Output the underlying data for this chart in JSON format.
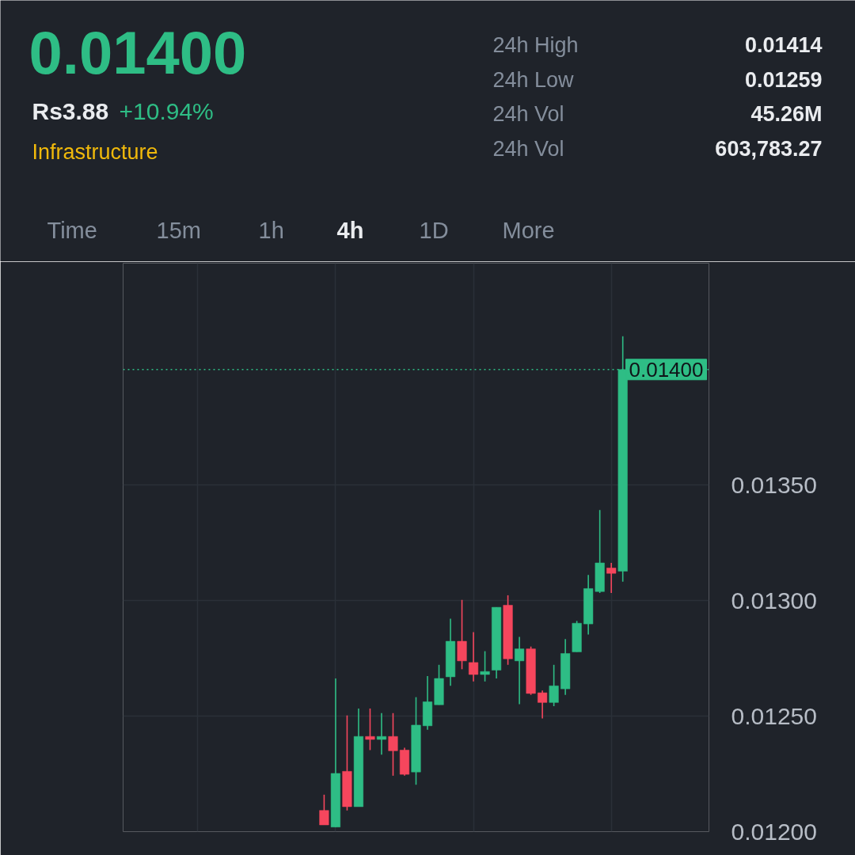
{
  "chart_data": {
    "type": "candlestick",
    "title": "0.01400",
    "annotations": [
      "Rs3.88",
      "+10.94%",
      "Infrastructure",
      "24h High",
      "0.01414",
      "24h Low",
      "0.01259",
      "24h Vol",
      "45.26M",
      "24h Vol",
      "603,783.27",
      "Time",
      "15m",
      "1h",
      "4h",
      "1D",
      "More"
    ],
    "categories": [
      null,
      null,
      null,
      null,
      null,
      null,
      null,
      null,
      null,
      null,
      null,
      null,
      null,
      null,
      null,
      null,
      null,
      null,
      null,
      null,
      null,
      null,
      null,
      null,
      null,
      null,
      null,
      null,
      null,
      null,
      null,
      null,
      null,
      null,
      null,
      null,
      null,
      null,
      null,
      null,
      null,
      null,
      null,
      null,
      null,
      null,
      null,
      null,
      null,
      null,
      null
    ],
    "ohlc": [
      null,
      null,
      null,
      null,
      null,
      null,
      null,
      null,
      null,
      null,
      null,
      null,
      null,
      null,
      null,
      null,
      null,
      [
        0.012092,
        0.01216,
        0.012029,
        0.012029
      ],
      [
        0.01202,
        0.012663,
        0.01202,
        0.012252
      ],
      [
        0.012261,
        0.012503,
        0.012092,
        0.012108
      ],
      [
        0.012108,
        0.012533,
        0.012108,
        0.012412
      ],
      [
        0.012412,
        0.012533,
        0.012353,
        0.012399
      ],
      [
        0.012399,
        0.012513,
        0.012333,
        0.012412
      ],
      [
        0.012412,
        0.012513,
        0.012242,
        0.01235
      ],
      [
        0.012353,
        0.012363,
        0.012242,
        0.012248
      ],
      [
        0.012258,
        0.012582,
        0.012203,
        0.012461
      ],
      [
        0.012458,
        0.012673,
        0.012441,
        0.012562
      ],
      [
        0.012549,
        0.012722,
        0.012549,
        0.012663
      ],
      [
        0.01267,
        0.012922,
        0.012631,
        0.012824
      ],
      [
        0.012824,
        0.013003,
        0.012703,
        0.012739
      ],
      [
        0.012732,
        0.012863,
        0.01265,
        0.01268
      ],
      [
        0.01268,
        0.012781,
        0.01265,
        0.012693
      ],
      [
        0.012699,
        0.012971,
        0.012663,
        0.012971
      ],
      [
        0.01298,
        0.013023,
        0.012722,
        0.012748
      ],
      [
        0.012739,
        0.012843,
        0.012552,
        0.012791
      ],
      [
        0.012791,
        0.012801,
        0.012592,
        0.012598
      ],
      [
        0.012601,
        0.012611,
        0.01249,
        0.012559
      ],
      [
        0.012559,
        0.012722,
        0.012543,
        0.012631
      ],
      [
        0.012618,
        0.012833,
        0.012592,
        0.012771
      ],
      [
        0.012778,
        0.012912,
        0.012778,
        0.012902
      ],
      [
        0.012899,
        0.013111,
        0.012853,
        0.013052
      ],
      [
        0.013039,
        0.013392,
        0.013033,
        0.013163
      ],
      [
        0.013141,
        0.013163,
        0.013033,
        0.013118
      ],
      [
        0.013127,
        0.014144,
        0.013082,
        0.014
      ],
      null,
      null,
      null,
      null,
      null,
      null,
      null
    ],
    "colors": [
      null,
      null,
      null,
      null,
      null,
      null,
      null,
      null,
      null,
      null,
      null,
      null,
      null,
      null,
      null,
      null,
      null,
      "#f6465d",
      "#2ebd85",
      "#f6465d",
      "#2ebd85",
      "#f6465d",
      "#2ebd85",
      "#f6465d",
      "#f6465d",
      "#2ebd85",
      "#2ebd85",
      "#2ebd85",
      "#2ebd85",
      "#f6465d",
      "#f6465d",
      "#2ebd85",
      "#2ebd85",
      "#f6465d",
      "#2ebd85",
      "#f6465d",
      "#f6465d",
      "#2ebd85",
      "#2ebd85",
      "#2ebd85",
      "#2ebd85",
      "#2ebd85",
      "#f6465d",
      "#2ebd85",
      null,
      null,
      null,
      null,
      null,
      null,
      null
    ],
    "ylim": [
      0.012,
      0.01446
    ],
    "yticks": [
      {
        "value": 0.012,
        "label": "0.01200"
      },
      {
        "value": 0.0125,
        "label": "0.01250"
      },
      {
        "value": 0.013,
        "label": "0.01300"
      },
      {
        "value": 0.0135,
        "label": "0.01350"
      }
    ],
    "ref_lines": [
      {
        "axis": "y",
        "value": 0.014,
        "label": "0.01400",
        "color": "#2ebd85",
        "line_style": "dotted"
      }
    ],
    "grid": true,
    "tick_labels": "y"
  }
}
